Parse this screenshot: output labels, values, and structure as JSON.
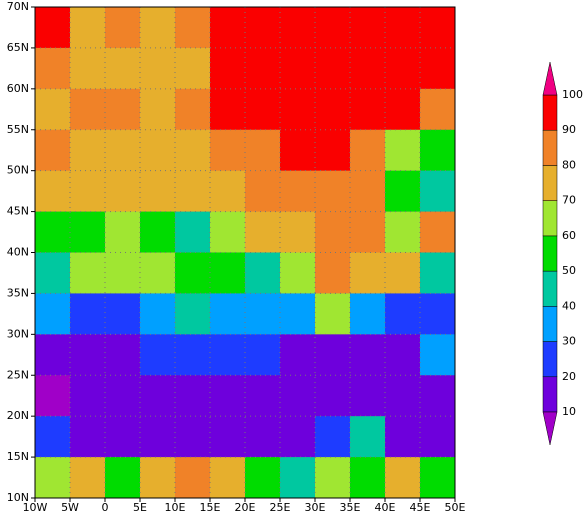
{
  "map": {
    "xlim": [
      -10,
      50
    ],
    "ylim": [
      10,
      70
    ],
    "xticks": [
      {
        "value": -10,
        "label": "10W"
      },
      {
        "value": -5,
        "label": "5W"
      },
      0,
      {
        "value": 5,
        "label": "5E"
      },
      {
        "value": 10,
        "label": "10E"
      },
      {
        "value": 15,
        "label": "15E"
      },
      {
        "value": 20,
        "label": "20E"
      },
      {
        "value": 25,
        "label": "25E"
      },
      {
        "value": 30,
        "label": "30E"
      },
      {
        "value": 35,
        "label": "35E"
      },
      {
        "value": 40,
        "label": "40E"
      },
      {
        "value": 45,
        "label": "45E"
      },
      {
        "value": 50,
        "label": "50E"
      }
    ],
    "yticks": [
      {
        "value": 10,
        "label": "10N"
      },
      {
        "value": 15,
        "label": "15N"
      },
      {
        "value": 20,
        "label": "20N"
      },
      {
        "value": 25,
        "label": "25N"
      },
      {
        "value": 30,
        "label": "30N"
      },
      {
        "value": 35,
        "label": "35N"
      },
      {
        "value": 40,
        "label": "40N"
      },
      {
        "value": 45,
        "label": "45N"
      },
      {
        "value": 50,
        "label": "50N"
      },
      {
        "value": 55,
        "label": "55N"
      },
      {
        "value": 60,
        "label": "60N"
      },
      {
        "value": 65,
        "label": "65N"
      },
      {
        "value": 70,
        "label": "70N"
      }
    ],
    "grid": true,
    "lon": [
      -7.5,
      -2.5,
      2.5,
      7.5,
      12.5,
      17.5,
      22.5,
      27.5,
      32.5,
      37.5,
      42.5,
      47.5
    ],
    "lat": [
      67.5,
      62.5,
      57.5,
      52.5,
      47.5,
      42.5,
      37.5,
      32.5,
      27.5,
      22.5,
      17.5,
      12.5
    ],
    "field": [
      [
        95,
        75,
        85,
        75,
        85,
        95,
        95,
        95,
        95,
        95,
        95,
        95
      ],
      [
        85,
        75,
        75,
        75,
        75,
        95,
        95,
        95,
        95,
        95,
        95,
        95
      ],
      [
        75,
        85,
        85,
        75,
        85,
        95,
        95,
        95,
        95,
        95,
        95,
        85
      ],
      [
        85,
        75,
        75,
        75,
        75,
        85,
        85,
        95,
        95,
        85,
        65,
        55
      ],
      [
        75,
        75,
        75,
        75,
        75,
        75,
        85,
        85,
        85,
        85,
        55,
        45
      ],
      [
        55,
        55,
        65,
        55,
        45,
        65,
        75,
        75,
        85,
        85,
        65,
        85
      ],
      [
        45,
        65,
        65,
        65,
        55,
        55,
        45,
        65,
        85,
        75,
        75,
        45
      ],
      [
        35,
        25,
        25,
        35,
        45,
        35,
        35,
        35,
        65,
        35,
        25,
        25
      ],
      [
        15,
        15,
        15,
        25,
        25,
        25,
        25,
        15,
        15,
        15,
        15,
        35
      ],
      [
        5,
        15,
        15,
        15,
        15,
        15,
        15,
        15,
        15,
        15,
        15,
        15
      ],
      [
        25,
        15,
        15,
        15,
        15,
        15,
        15,
        15,
        25,
        45,
        15,
        15
      ],
      [
        65,
        75,
        55,
        75,
        85,
        75,
        55,
        45,
        65,
        55,
        75,
        55
      ]
    ],
    "levels": [
      10,
      20,
      30,
      40,
      50,
      60,
      70,
      80,
      90,
      100
    ],
    "colors": [
      "#a000c8",
      "#6e00dc",
      "#1e3cff",
      "#00a0ff",
      "#00c8a0",
      "#00dc00",
      "#a0e632",
      "#e6af2d",
      "#f08228",
      "#fa0000",
      "#f00082"
    ]
  }
}
